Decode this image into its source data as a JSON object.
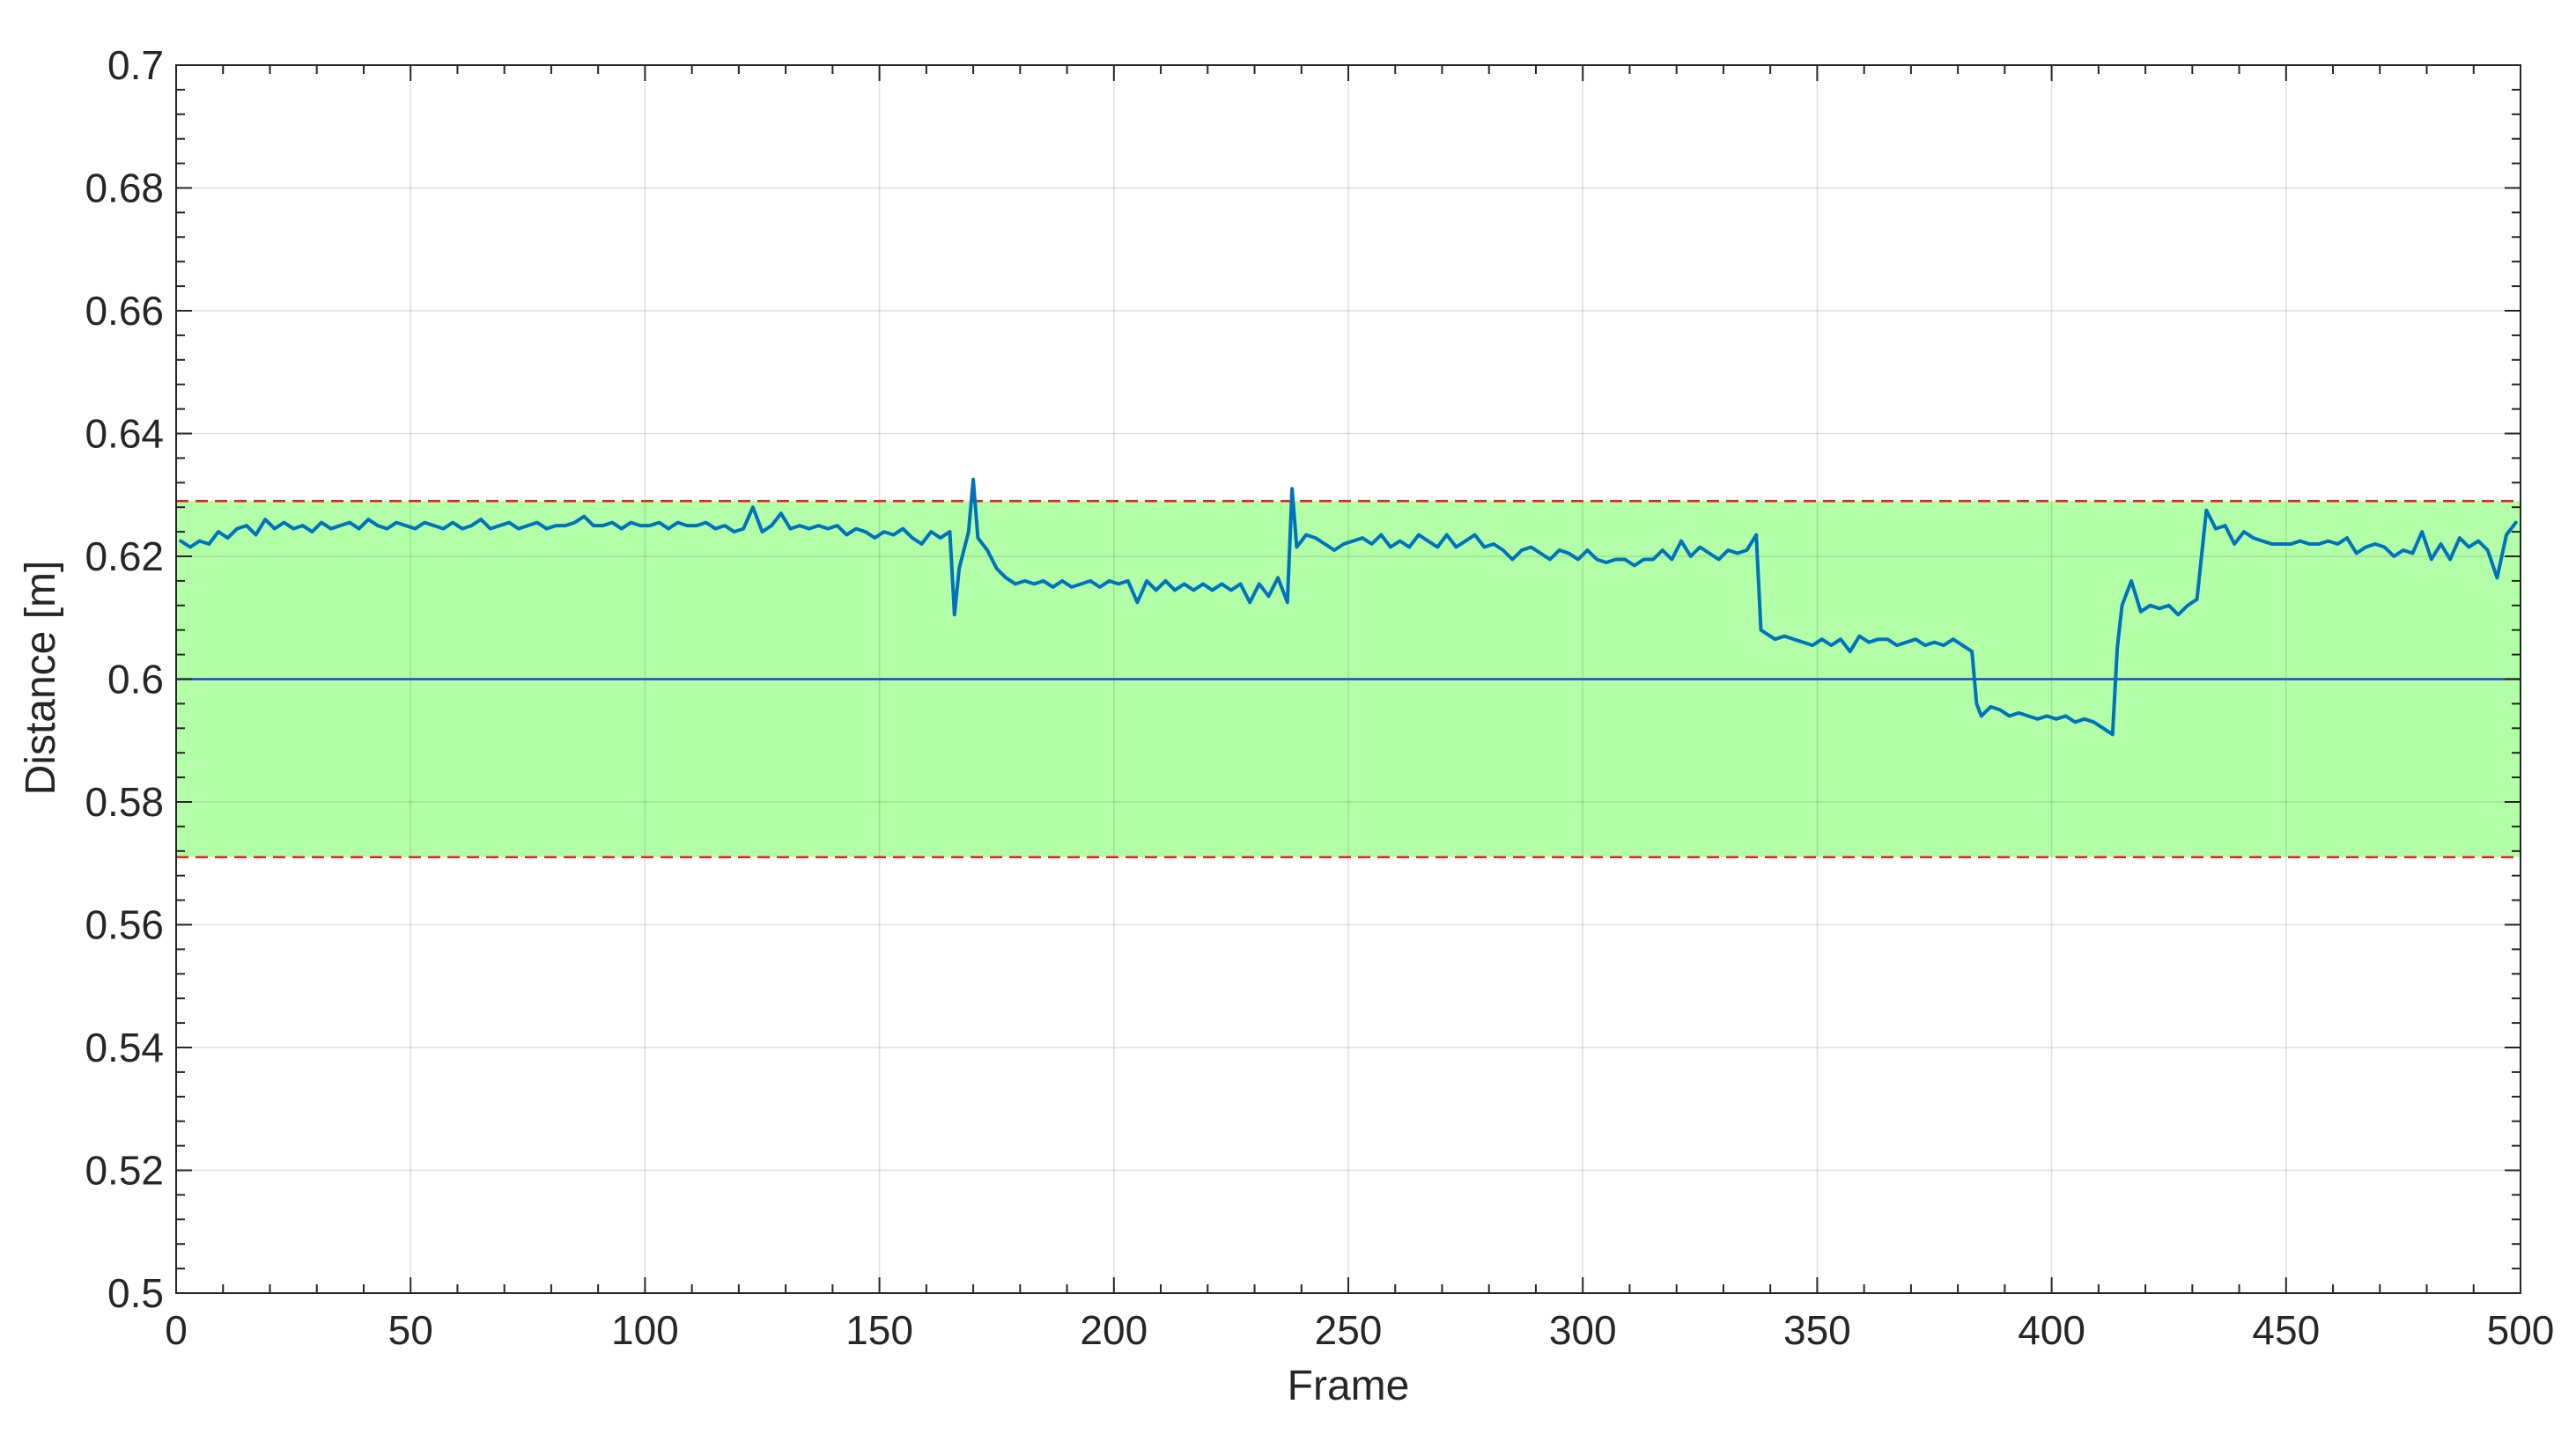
{
  "chart_data": {
    "type": "line",
    "title": "",
    "xlabel": "Frame",
    "ylabel": "Distance [m]",
    "xlim": [
      0,
      500
    ],
    "ylim": [
      0.5,
      0.7
    ],
    "x_ticks": [
      0,
      50,
      100,
      150,
      200,
      250,
      300,
      350,
      400,
      450,
      500
    ],
    "x_tick_labels": [
      "0",
      "50",
      "100",
      "150",
      "200",
      "250",
      "300",
      "350",
      "400",
      "450",
      "500"
    ],
    "y_ticks": [
      0.5,
      0.52,
      0.54,
      0.56,
      0.58,
      0.6,
      0.62,
      0.64,
      0.66,
      0.68,
      0.7
    ],
    "y_tick_labels": [
      "0.5",
      "0.52",
      "0.54",
      "0.56",
      "0.58",
      "0.6",
      "0.62",
      "0.64",
      "0.66",
      "0.68",
      "0.7"
    ],
    "grid": true,
    "reference_line": 0.6,
    "band": [
      0.571,
      0.629
    ],
    "colors": {
      "series": "#0072BD",
      "reference": "#1f3fd6",
      "band_fill": "#b2ffa8",
      "band_edge": "#e0241b"
    },
    "series": [
      {
        "points": [
          [
            1,
            0.6225
          ],
          [
            3,
            0.6215
          ],
          [
            5,
            0.6225
          ],
          [
            7,
            0.622
          ],
          [
            9,
            0.624
          ],
          [
            11,
            0.623
          ],
          [
            13,
            0.6245
          ],
          [
            15,
            0.625
          ],
          [
            17,
            0.6235
          ],
          [
            19,
            0.626
          ],
          [
            21,
            0.6245
          ],
          [
            23,
            0.6255
          ],
          [
            25,
            0.6245
          ],
          [
            27,
            0.625
          ],
          [
            29,
            0.624
          ],
          [
            31,
            0.6255
          ],
          [
            33,
            0.6245
          ],
          [
            35,
            0.625
          ],
          [
            37,
            0.6255
          ],
          [
            39,
            0.6245
          ],
          [
            41,
            0.626
          ],
          [
            43,
            0.625
          ],
          [
            45,
            0.6245
          ],
          [
            47,
            0.6255
          ],
          [
            49,
            0.625
          ],
          [
            51,
            0.6245
          ],
          [
            53,
            0.6255
          ],
          [
            55,
            0.625
          ],
          [
            57,
            0.6245
          ],
          [
            59,
            0.6255
          ],
          [
            61,
            0.6245
          ],
          [
            63,
            0.625
          ],
          [
            65,
            0.626
          ],
          [
            67,
            0.6245
          ],
          [
            69,
            0.625
          ],
          [
            71,
            0.6255
          ],
          [
            73,
            0.6245
          ],
          [
            75,
            0.625
          ],
          [
            77,
            0.6255
          ],
          [
            79,
            0.6245
          ],
          [
            81,
            0.625
          ],
          [
            83,
            0.625
          ],
          [
            85,
            0.6255
          ],
          [
            87,
            0.6265
          ],
          [
            89,
            0.625
          ],
          [
            91,
            0.625
          ],
          [
            93,
            0.6255
          ],
          [
            95,
            0.6245
          ],
          [
            97,
            0.6255
          ],
          [
            99,
            0.625
          ],
          [
            101,
            0.625
          ],
          [
            103,
            0.6255
          ],
          [
            105,
            0.6245
          ],
          [
            107,
            0.6255
          ],
          [
            109,
            0.625
          ],
          [
            111,
            0.625
          ],
          [
            113,
            0.6255
          ],
          [
            115,
            0.6245
          ],
          [
            117,
            0.625
          ],
          [
            119,
            0.624
          ],
          [
            121,
            0.6245
          ],
          [
            123,
            0.628
          ],
          [
            125,
            0.624
          ],
          [
            127,
            0.625
          ],
          [
            129,
            0.627
          ],
          [
            131,
            0.6245
          ],
          [
            133,
            0.625
          ],
          [
            135,
            0.6245
          ],
          [
            137,
            0.625
          ],
          [
            139,
            0.6245
          ],
          [
            141,
            0.625
          ],
          [
            143,
            0.6235
          ],
          [
            145,
            0.6245
          ],
          [
            147,
            0.624
          ],
          [
            149,
            0.623
          ],
          [
            151,
            0.624
          ],
          [
            153,
            0.6235
          ],
          [
            155,
            0.6245
          ],
          [
            157,
            0.623
          ],
          [
            159,
            0.622
          ],
          [
            161,
            0.624
          ],
          [
            163,
            0.623
          ],
          [
            165,
            0.624
          ],
          [
            166,
            0.6105
          ],
          [
            167,
            0.618
          ],
          [
            169,
            0.624
          ],
          [
            170,
            0.6325
          ],
          [
            171,
            0.623
          ],
          [
            173,
            0.621
          ],
          [
            175,
            0.618
          ],
          [
            177,
            0.6165
          ],
          [
            179,
            0.6155
          ],
          [
            181,
            0.616
          ],
          [
            183,
            0.6155
          ],
          [
            185,
            0.616
          ],
          [
            187,
            0.615
          ],
          [
            189,
            0.616
          ],
          [
            191,
            0.615
          ],
          [
            193,
            0.6155
          ],
          [
            195,
            0.616
          ],
          [
            197,
            0.615
          ],
          [
            199,
            0.616
          ],
          [
            201,
            0.6155
          ],
          [
            203,
            0.616
          ],
          [
            205,
            0.6125
          ],
          [
            207,
            0.616
          ],
          [
            209,
            0.6145
          ],
          [
            211,
            0.616
          ],
          [
            213,
            0.6145
          ],
          [
            215,
            0.6155
          ],
          [
            217,
            0.6145
          ],
          [
            219,
            0.6155
          ],
          [
            221,
            0.6145
          ],
          [
            223,
            0.6155
          ],
          [
            225,
            0.6145
          ],
          [
            227,
            0.6155
          ],
          [
            229,
            0.6125
          ],
          [
            231,
            0.6155
          ],
          [
            233,
            0.6135
          ],
          [
            235,
            0.6165
          ],
          [
            237,
            0.6125
          ],
          [
            238,
            0.631
          ],
          [
            239,
            0.6215
          ],
          [
            241,
            0.6235
          ],
          [
            243,
            0.623
          ],
          [
            245,
            0.622
          ],
          [
            247,
            0.621
          ],
          [
            249,
            0.622
          ],
          [
            251,
            0.6225
          ],
          [
            253,
            0.623
          ],
          [
            255,
            0.622
          ],
          [
            257,
            0.6235
          ],
          [
            259,
            0.6215
          ],
          [
            261,
            0.6225
          ],
          [
            263,
            0.6215
          ],
          [
            265,
            0.6235
          ],
          [
            267,
            0.6225
          ],
          [
            269,
            0.6215
          ],
          [
            271,
            0.6235
          ],
          [
            273,
            0.6215
          ],
          [
            275,
            0.6225
          ],
          [
            277,
            0.6235
          ],
          [
            279,
            0.6215
          ],
          [
            281,
            0.622
          ],
          [
            283,
            0.621
          ],
          [
            285,
            0.6195
          ],
          [
            287,
            0.621
          ],
          [
            289,
            0.6215
          ],
          [
            291,
            0.6205
          ],
          [
            293,
            0.6195
          ],
          [
            295,
            0.621
          ],
          [
            297,
            0.6205
          ],
          [
            299,
            0.6195
          ],
          [
            301,
            0.621
          ],
          [
            303,
            0.6195
          ],
          [
            305,
            0.619
          ],
          [
            307,
            0.6195
          ],
          [
            309,
            0.6195
          ],
          [
            311,
            0.6185
          ],
          [
            313,
            0.6195
          ],
          [
            315,
            0.6195
          ],
          [
            317,
            0.621
          ],
          [
            319,
            0.6195
          ],
          [
            321,
            0.6225
          ],
          [
            323,
            0.62
          ],
          [
            325,
            0.6215
          ],
          [
            327,
            0.6205
          ],
          [
            329,
            0.6195
          ],
          [
            331,
            0.621
          ],
          [
            333,
            0.6205
          ],
          [
            335,
            0.621
          ],
          [
            337,
            0.6235
          ],
          [
            338,
            0.608
          ],
          [
            339,
            0.6075
          ],
          [
            341,
            0.6065
          ],
          [
            343,
            0.607
          ],
          [
            345,
            0.6065
          ],
          [
            347,
            0.606
          ],
          [
            349,
            0.6055
          ],
          [
            351,
            0.6065
          ],
          [
            353,
            0.6055
          ],
          [
            355,
            0.6065
          ],
          [
            357,
            0.6045
          ],
          [
            359,
            0.607
          ],
          [
            361,
            0.606
          ],
          [
            363,
            0.6065
          ],
          [
            365,
            0.6065
          ],
          [
            367,
            0.6055
          ],
          [
            369,
            0.606
          ],
          [
            371,
            0.6065
          ],
          [
            373,
            0.6055
          ],
          [
            375,
            0.606
          ],
          [
            377,
            0.6055
          ],
          [
            379,
            0.6065
          ],
          [
            381,
            0.6055
          ],
          [
            383,
            0.6045
          ],
          [
            384,
            0.596
          ],
          [
            385,
            0.594
          ],
          [
            387,
            0.5955
          ],
          [
            389,
            0.595
          ],
          [
            391,
            0.594
          ],
          [
            393,
            0.5945
          ],
          [
            395,
            0.594
          ],
          [
            397,
            0.5935
          ],
          [
            399,
            0.594
          ],
          [
            401,
            0.5935
          ],
          [
            403,
            0.594
          ],
          [
            405,
            0.593
          ],
          [
            407,
            0.5935
          ],
          [
            409,
            0.593
          ],
          [
            411,
            0.592
          ],
          [
            413,
            0.591
          ],
          [
            414,
            0.605
          ],
          [
            415,
            0.612
          ],
          [
            417,
            0.616
          ],
          [
            419,
            0.611
          ],
          [
            421,
            0.612
          ],
          [
            423,
            0.6115
          ],
          [
            425,
            0.612
          ],
          [
            427,
            0.6105
          ],
          [
            429,
            0.612
          ],
          [
            431,
            0.613
          ],
          [
            433,
            0.6275
          ],
          [
            435,
            0.6245
          ],
          [
            437,
            0.625
          ],
          [
            439,
            0.622
          ],
          [
            441,
            0.624
          ],
          [
            443,
            0.623
          ],
          [
            445,
            0.6225
          ],
          [
            447,
            0.622
          ],
          [
            449,
            0.622
          ],
          [
            451,
            0.622
          ],
          [
            453,
            0.6225
          ],
          [
            455,
            0.622
          ],
          [
            457,
            0.622
          ],
          [
            459,
            0.6225
          ],
          [
            461,
            0.622
          ],
          [
            463,
            0.623
          ],
          [
            465,
            0.6205
          ],
          [
            467,
            0.6215
          ],
          [
            469,
            0.622
          ],
          [
            471,
            0.6215
          ],
          [
            473,
            0.62
          ],
          [
            475,
            0.621
          ],
          [
            477,
            0.6205
          ],
          [
            479,
            0.624
          ],
          [
            481,
            0.6195
          ],
          [
            483,
            0.622
          ],
          [
            485,
            0.6195
          ],
          [
            487,
            0.623
          ],
          [
            489,
            0.6215
          ],
          [
            491,
            0.6225
          ],
          [
            493,
            0.621
          ],
          [
            495,
            0.6165
          ],
          [
            497,
            0.6235
          ],
          [
            499,
            0.6255
          ]
        ]
      }
    ]
  }
}
